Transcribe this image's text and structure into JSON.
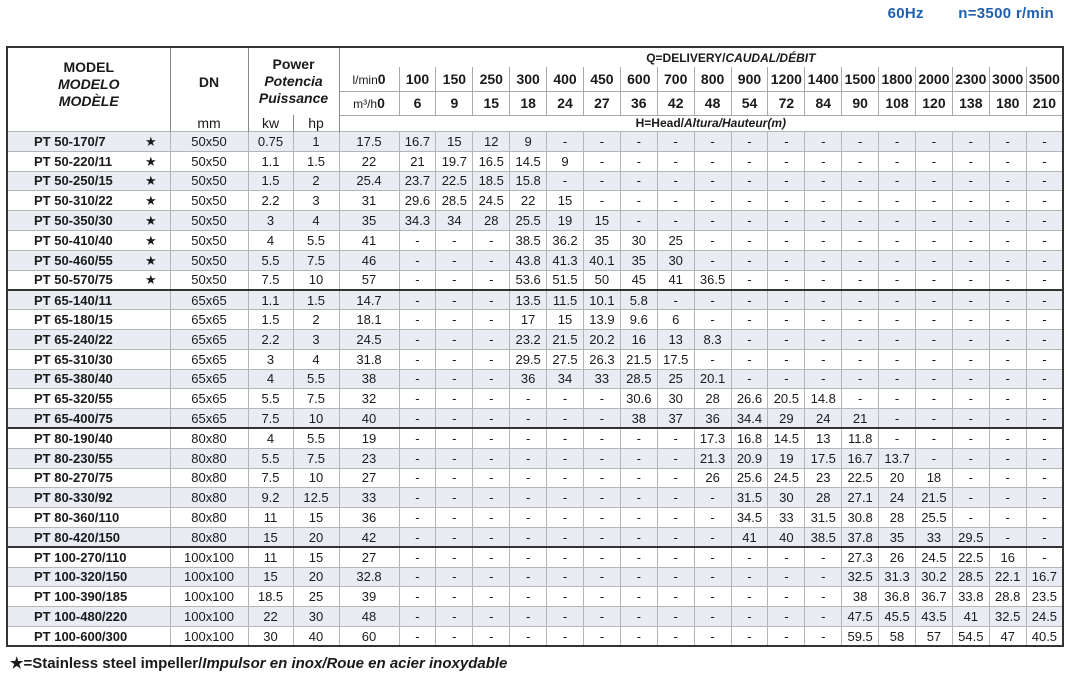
{
  "top": {
    "freq": "60Hz",
    "speed": "n=3500 r/min"
  },
  "header": {
    "model": [
      "MODEL",
      "MODELO",
      "MODÈLE"
    ],
    "dn": "DN",
    "dn_unit": "mm",
    "power": [
      "Power",
      "Potencia",
      "Puissance"
    ],
    "kw": "kw",
    "hp": "hp",
    "q_label": "Q=DELIVERY/",
    "q_label_italic": "CAUDAL/DÉBIT",
    "h_label": "H=Head/",
    "h_label_italic": "Altura/Hauteur(m)",
    "lmin_unit": "l/min",
    "m3h_unit": "m³/h",
    "lmin": [
      "0",
      "100",
      "150",
      "250",
      "300",
      "400",
      "450",
      "600",
      "700",
      "800",
      "900",
      "1200",
      "1400",
      "1500",
      "1800",
      "2000",
      "2300",
      "3000",
      "3500"
    ],
    "m3h": [
      "0",
      "6",
      "9",
      "15",
      "18",
      "24",
      "27",
      "36",
      "42",
      "48",
      "54",
      "72",
      "84",
      "90",
      "108",
      "120",
      "138",
      "180",
      "210"
    ]
  },
  "star_symbol": "★",
  "rows": [
    {
      "model": "PT 50-170/7",
      "star": true,
      "dn": "50x50",
      "kw": "0.75",
      "hp": "1",
      "heads": [
        "17.5",
        "16.7",
        "15",
        "12",
        "9",
        "-",
        "-",
        "-",
        "-",
        "-",
        "-",
        "-",
        "-",
        "-",
        "-",
        "-",
        "-",
        "-",
        "-"
      ]
    },
    {
      "model": "PT 50-220/11",
      "star": true,
      "dn": "50x50",
      "kw": "1.1",
      "hp": "1.5",
      "heads": [
        "22",
        "21",
        "19.7",
        "16.5",
        "14.5",
        "9",
        "-",
        "-",
        "-",
        "-",
        "-",
        "-",
        "-",
        "-",
        "-",
        "-",
        "-",
        "-",
        "-"
      ]
    },
    {
      "model": "PT 50-250/15",
      "star": true,
      "dn": "50x50",
      "kw": "1.5",
      "hp": "2",
      "heads": [
        "25.4",
        "23.7",
        "22.5",
        "18.5",
        "15.8",
        "-",
        "-",
        "-",
        "-",
        "-",
        "-",
        "-",
        "-",
        "-",
        "-",
        "-",
        "-",
        "-",
        "-"
      ]
    },
    {
      "model": "PT 50-310/22",
      "star": true,
      "dn": "50x50",
      "kw": "2.2",
      "hp": "3",
      "heads": [
        "31",
        "29.6",
        "28.5",
        "24.5",
        "22",
        "15",
        "-",
        "-",
        "-",
        "-",
        "-",
        "-",
        "-",
        "-",
        "-",
        "-",
        "-",
        "-",
        "-"
      ]
    },
    {
      "model": "PT 50-350/30",
      "star": true,
      "dn": "50x50",
      "kw": "3",
      "hp": "4",
      "heads": [
        "35",
        "34.3",
        "34",
        "28",
        "25.5",
        "19",
        "15",
        "-",
        "-",
        "-",
        "-",
        "-",
        "-",
        "-",
        "-",
        "-",
        "-",
        "-",
        "-"
      ]
    },
    {
      "model": "PT 50-410/40",
      "star": true,
      "dn": "50x50",
      "kw": "4",
      "hp": "5.5",
      "heads": [
        "41",
        "-",
        "-",
        "-",
        "38.5",
        "36.2",
        "35",
        "30",
        "25",
        "-",
        "-",
        "-",
        "-",
        "-",
        "-",
        "-",
        "-",
        "-",
        "-"
      ]
    },
    {
      "model": "PT 50-460/55",
      "star": true,
      "dn": "50x50",
      "kw": "5.5",
      "hp": "7.5",
      "heads": [
        "46",
        "-",
        "-",
        "-",
        "43.8",
        "41.3",
        "40.1",
        "35",
        "30",
        "-",
        "-",
        "-",
        "-",
        "-",
        "-",
        "-",
        "-",
        "-",
        "-"
      ]
    },
    {
      "model": "PT 50-570/75",
      "star": true,
      "dn": "50x50",
      "kw": "7.5",
      "hp": "10",
      "heads": [
        "57",
        "-",
        "-",
        "-",
        "53.6",
        "51.5",
        "50",
        "45",
        "41",
        "36.5",
        "-",
        "-",
        "-",
        "-",
        "-",
        "-",
        "-",
        "-",
        "-"
      ]
    },
    {
      "model": "PT 65-140/11",
      "star": false,
      "dn": "65x65",
      "kw": "1.1",
      "hp": "1.5",
      "heads": [
        "14.7",
        "-",
        "-",
        "-",
        "13.5",
        "11.5",
        "10.1",
        "5.8",
        "-",
        "-",
        "-",
        "-",
        "-",
        "-",
        "-",
        "-",
        "-",
        "-",
        "-"
      ]
    },
    {
      "model": "PT 65-180/15",
      "star": false,
      "dn": "65x65",
      "kw": "1.5",
      "hp": "2",
      "heads": [
        "18.1",
        "-",
        "-",
        "-",
        "17",
        "15",
        "13.9",
        "9.6",
        "6",
        "-",
        "-",
        "-",
        "-",
        "-",
        "-",
        "-",
        "-",
        "-",
        "-"
      ]
    },
    {
      "model": "PT 65-240/22",
      "star": false,
      "dn": "65x65",
      "kw": "2.2",
      "hp": "3",
      "heads": [
        "24.5",
        "-",
        "-",
        "-",
        "23.2",
        "21.5",
        "20.2",
        "16",
        "13",
        "8.3",
        "-",
        "-",
        "-",
        "-",
        "-",
        "-",
        "-",
        "-",
        "-"
      ]
    },
    {
      "model": "PT 65-310/30",
      "star": false,
      "dn": "65x65",
      "kw": "3",
      "hp": "4",
      "heads": [
        "31.8",
        "-",
        "-",
        "-",
        "29.5",
        "27.5",
        "26.3",
        "21.5",
        "17.5",
        "-",
        "-",
        "-",
        "-",
        "-",
        "-",
        "-",
        "-",
        "-",
        "-"
      ]
    },
    {
      "model": "PT 65-380/40",
      "star": false,
      "dn": "65x65",
      "kw": "4",
      "hp": "5.5",
      "heads": [
        "38",
        "-",
        "-",
        "-",
        "36",
        "34",
        "33",
        "28.5",
        "25",
        "20.1",
        "-",
        "-",
        "-",
        "-",
        "-",
        "-",
        "-",
        "-",
        "-"
      ]
    },
    {
      "model": "PT 65-320/55",
      "star": false,
      "dn": "65x65",
      "kw": "5.5",
      "hp": "7.5",
      "heads": [
        "32",
        "-",
        "-",
        "-",
        "-",
        "-",
        "-",
        "30.6",
        "30",
        "28",
        "26.6",
        "20.5",
        "14.8",
        "-",
        "-",
        "-",
        "-",
        "-",
        "-"
      ]
    },
    {
      "model": "PT 65-400/75",
      "star": false,
      "dn": "65x65",
      "kw": "7.5",
      "hp": "10",
      "heads": [
        "40",
        "-",
        "-",
        "-",
        "-",
        "-",
        "-",
        "38",
        "37",
        "36",
        "34.4",
        "29",
        "24",
        "21",
        "-",
        "-",
        "-",
        "-",
        "-"
      ]
    },
    {
      "model": "PT 80-190/40",
      "star": false,
      "dn": "80x80",
      "kw": "4",
      "hp": "5.5",
      "heads": [
        "19",
        "-",
        "-",
        "-",
        "-",
        "-",
        "-",
        "-",
        "-",
        "17.3",
        "16.8",
        "14.5",
        "13",
        "11.8",
        "-",
        "-",
        "-",
        "-",
        "-"
      ]
    },
    {
      "model": "PT 80-230/55",
      "star": false,
      "dn": "80x80",
      "kw": "5.5",
      "hp": "7.5",
      "heads": [
        "23",
        "-",
        "-",
        "-",
        "-",
        "-",
        "-",
        "-",
        "-",
        "21.3",
        "20.9",
        "19",
        "17.5",
        "16.7",
        "13.7",
        "-",
        "-",
        "-",
        "-"
      ]
    },
    {
      "model": "PT 80-270/75",
      "star": false,
      "dn": "80x80",
      "kw": "7.5",
      "hp": "10",
      "heads": [
        "27",
        "-",
        "-",
        "-",
        "-",
        "-",
        "-",
        "-",
        "-",
        "26",
        "25.6",
        "24.5",
        "23",
        "22.5",
        "20",
        "18",
        "-",
        "-",
        "-"
      ]
    },
    {
      "model": "PT 80-330/92",
      "star": false,
      "dn": "80x80",
      "kw": "9.2",
      "hp": "12.5",
      "heads": [
        "33",
        "-",
        "-",
        "-",
        "-",
        "-",
        "-",
        "-",
        "-",
        "-",
        "31.5",
        "30",
        "28",
        "27.1",
        "24",
        "21.5",
        "-",
        "-",
        "-"
      ]
    },
    {
      "model": "PT 80-360/110",
      "star": false,
      "dn": "80x80",
      "kw": "11",
      "hp": "15",
      "heads": [
        "36",
        "-",
        "-",
        "-",
        "-",
        "-",
        "-",
        "-",
        "-",
        "-",
        "34.5",
        "33",
        "31.5",
        "30.8",
        "28",
        "25.5",
        "-",
        "-",
        "-"
      ]
    },
    {
      "model": "PT 80-420/150",
      "star": false,
      "dn": "80x80",
      "kw": "15",
      "hp": "20",
      "heads": [
        "42",
        "-",
        "-",
        "-",
        "-",
        "-",
        "-",
        "-",
        "-",
        "-",
        "41",
        "40",
        "38.5",
        "37.8",
        "35",
        "33",
        "29.5",
        "-",
        "-"
      ]
    },
    {
      "model": "PT 100-270/110",
      "star": false,
      "dn": "100x100",
      "kw": "11",
      "hp": "15",
      "heads": [
        "27",
        "-",
        "-",
        "-",
        "-",
        "-",
        "-",
        "-",
        "-",
        "-",
        "-",
        "-",
        "-",
        "27.3",
        "26",
        "24.5",
        "22.5",
        "16",
        "-"
      ]
    },
    {
      "model": "PT 100-320/150",
      "star": false,
      "dn": "100x100",
      "kw": "15",
      "hp": "20",
      "heads": [
        "32.8",
        "-",
        "-",
        "-",
        "-",
        "-",
        "-",
        "-",
        "-",
        "-",
        "-",
        "-",
        "-",
        "32.5",
        "31.3",
        "30.2",
        "28.5",
        "22.1",
        "16.7"
      ]
    },
    {
      "model": "PT 100-390/185",
      "star": false,
      "dn": "100x100",
      "kw": "18.5",
      "hp": "25",
      "heads": [
        "39",
        "-",
        "-",
        "-",
        "-",
        "-",
        "-",
        "-",
        "-",
        "-",
        "-",
        "-",
        "-",
        "38",
        "36.8",
        "36.7",
        "33.8",
        "28.8",
        "23.5"
      ]
    },
    {
      "model": "PT 100-480/220",
      "star": false,
      "dn": "100x100",
      "kw": "22",
      "hp": "30",
      "heads": [
        "48",
        "-",
        "-",
        "-",
        "-",
        "-",
        "-",
        "-",
        "-",
        "-",
        "-",
        "-",
        "-",
        "47.5",
        "45.5",
        "43.5",
        "41",
        "32.5",
        "24.5"
      ]
    },
    {
      "model": "PT 100-600/300",
      "star": false,
      "dn": "100x100",
      "kw": "30",
      "hp": "40",
      "heads": [
        "60",
        "-",
        "-",
        "-",
        "-",
        "-",
        "-",
        "-",
        "-",
        "-",
        "-",
        "-",
        "-",
        "59.5",
        "58",
        "57",
        "54.5",
        "47",
        "40.5"
      ]
    }
  ],
  "footer": {
    "star": "★",
    "text": "=Stainless steel impeller/",
    "italic": "Impulsor en inox/Roue en acier inoxydable"
  },
  "colors": {
    "accent": "#1f5fae",
    "row_shade": "#e9ecf3"
  }
}
